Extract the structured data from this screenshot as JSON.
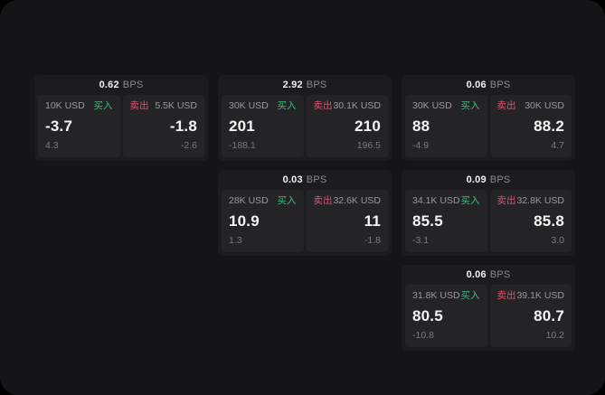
{
  "colors": {
    "buy": "#3bbd7e",
    "sell": "#d9536f"
  },
  "labels": {
    "buy": "买入",
    "sell": "卖出",
    "bps_unit": "BPS"
  },
  "cards": [
    {
      "bps": "0.62",
      "buy": {
        "amount": "10K USD",
        "price": "-3.7",
        "sub": "4.3"
      },
      "sell": {
        "amount": "5.5K USD",
        "price": "-1.8",
        "sub": "-2.6"
      }
    },
    {
      "bps": "2.92",
      "buy": {
        "amount": "30K USD",
        "price": "201",
        "sub": "-188.1"
      },
      "sell": {
        "amount": "30.1K USD",
        "price": "210",
        "sub": "196.5"
      }
    },
    {
      "bps": "0.06",
      "buy": {
        "amount": "30K USD",
        "price": "88",
        "sub": "-4.9"
      },
      "sell": {
        "amount": "30K USD",
        "price": "88.2",
        "sub": "4.7"
      }
    },
    {
      "bps": "0.03",
      "buy": {
        "amount": "28K USD",
        "price": "10.9",
        "sub": "1.3"
      },
      "sell": {
        "amount": "32.6K USD",
        "price": "11",
        "sub": "-1.8"
      }
    },
    {
      "bps": "0.09",
      "buy": {
        "amount": "34.1K USD",
        "price": "85.5",
        "sub": "-3.1"
      },
      "sell": {
        "amount": "32.8K USD",
        "price": "85.8",
        "sub": "3.0"
      }
    },
    {
      "bps": "0.06",
      "buy": {
        "amount": "31.8K USD",
        "price": "80.5",
        "sub": "-10.8"
      },
      "sell": {
        "amount": "39.1K USD",
        "price": "80.7",
        "sub": "10.2"
      }
    }
  ]
}
